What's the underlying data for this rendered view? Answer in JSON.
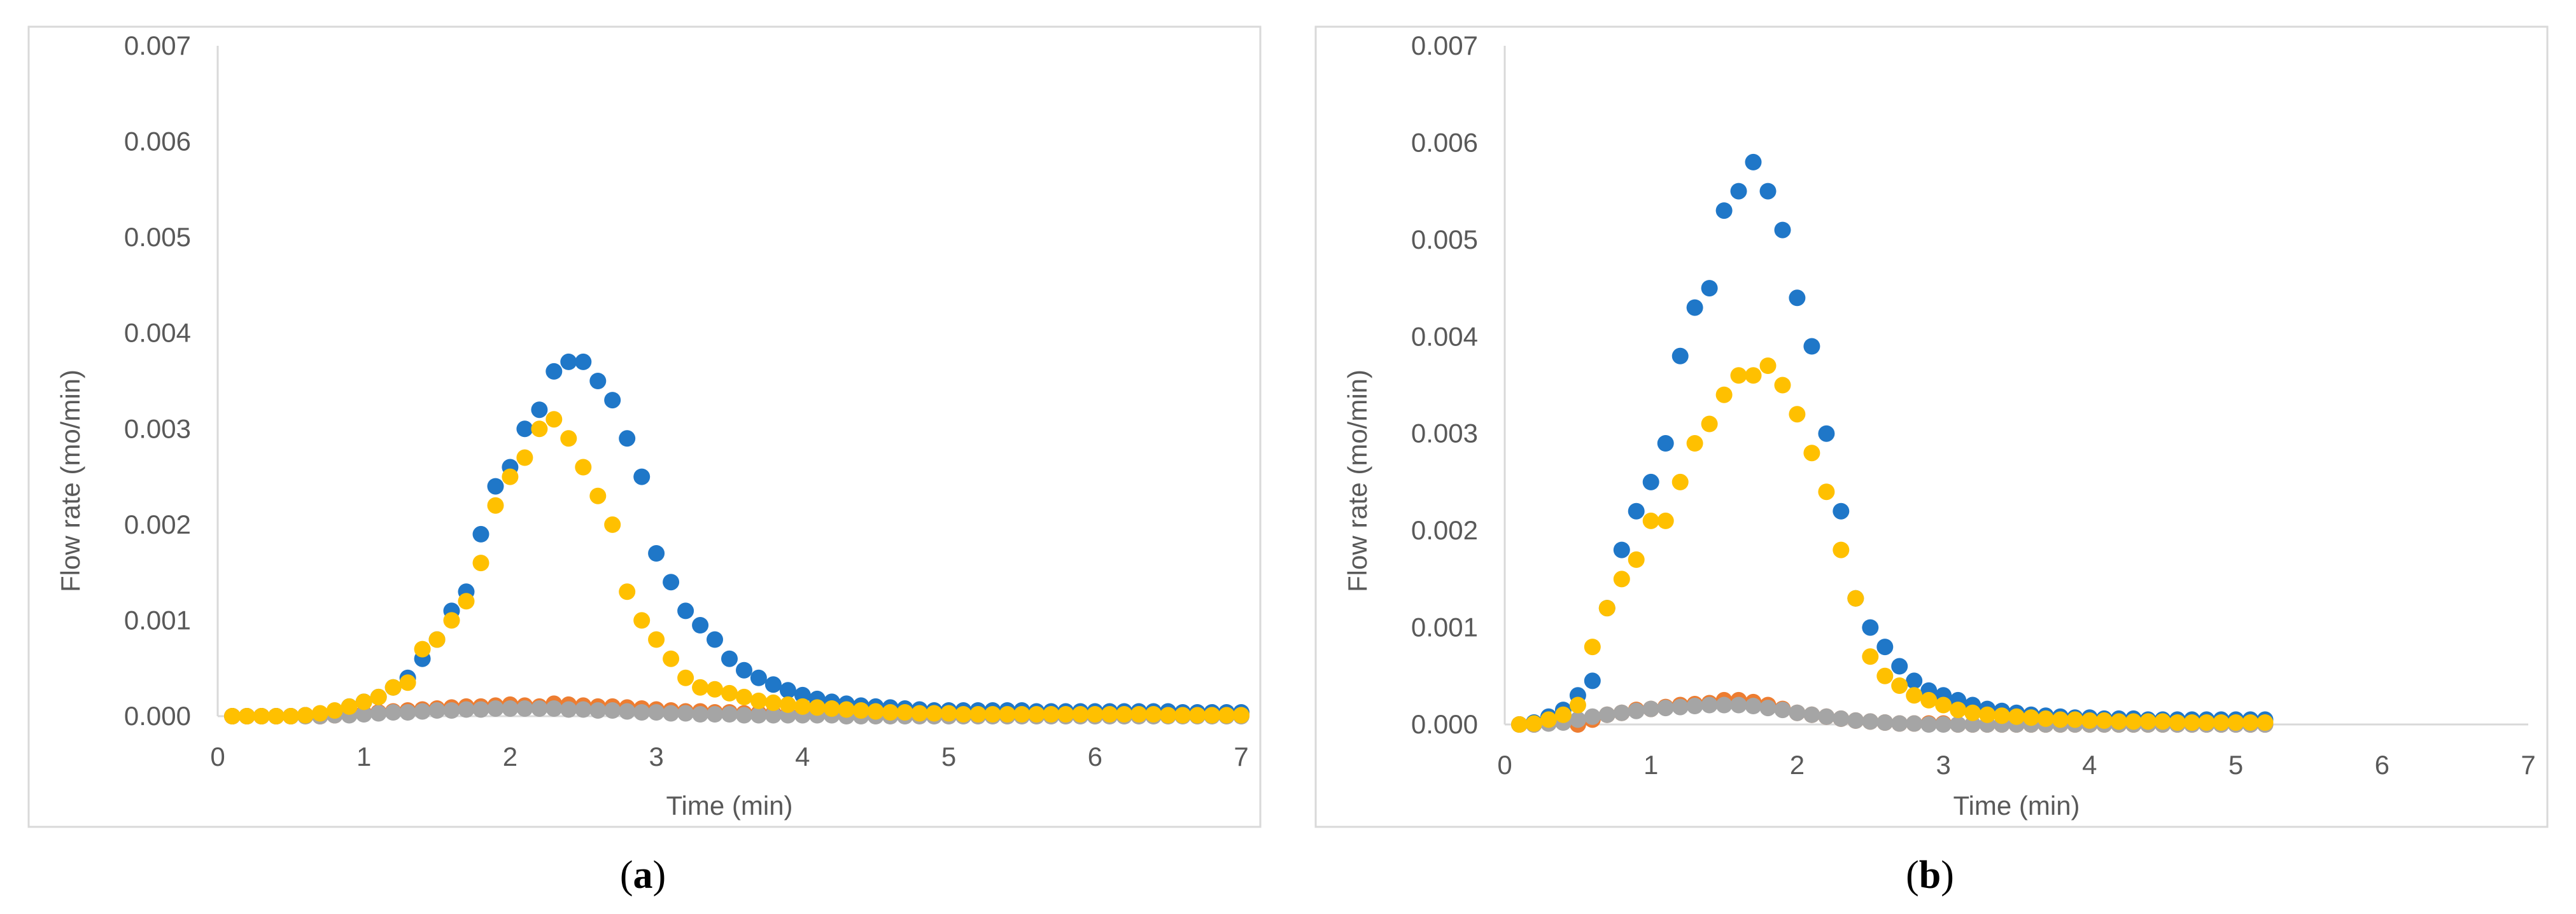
{
  "chart_data": [
    {
      "type": "scatter",
      "caption_letter": "a",
      "xlabel": "Time (min)",
      "ylabel": "Flow rate (mo/min)",
      "xlim": [
        0,
        7
      ],
      "ylim": [
        0,
        0.007
      ],
      "xticks": [
        "0",
        "1",
        "2",
        "3",
        "4",
        "5",
        "6",
        "7"
      ],
      "yticks": [
        "0.000",
        "0.001",
        "0.002",
        "0.003",
        "0.004",
        "0.005",
        "0.006",
        "0.007"
      ],
      "series": [
        {
          "name": "series-blue",
          "color": "#1F77C8",
          "x": [
            0.1,
            0.2,
            0.3,
            0.4,
            0.5,
            0.6,
            0.7,
            0.8,
            0.9,
            1.0,
            1.1,
            1.2,
            1.3,
            1.4,
            1.5,
            1.6,
            1.7,
            1.8,
            1.9,
            2.0,
            2.1,
            2.2,
            2.3,
            2.4,
            2.5,
            2.6,
            2.7,
            2.8,
            2.9,
            3.0,
            3.1,
            3.2,
            3.3,
            3.4,
            3.5,
            3.6,
            3.7,
            3.8,
            3.9,
            4.0,
            4.1,
            4.2,
            4.3,
            4.4,
            4.5,
            4.6,
            4.7,
            4.8,
            4.9,
            5.0,
            5.1,
            5.2,
            5.3,
            5.4,
            5.5,
            5.6,
            5.7,
            5.8,
            5.9,
            6.0,
            6.1,
            6.2,
            6.3,
            6.4,
            6.5,
            6.6,
            6.7,
            6.8,
            6.9,
            7.0
          ],
          "y": [
            0.0,
            0.0,
            0.0,
            0.0,
            0.0,
            1e-05,
            2e-05,
            5e-05,
            0.0001,
            0.00015,
            0.0002,
            0.0003,
            0.0004,
            0.0006,
            0.0008,
            0.0011,
            0.0013,
            0.0019,
            0.0024,
            0.0026,
            0.003,
            0.0032,
            0.0036,
            0.0037,
            0.0037,
            0.0035,
            0.0033,
            0.0029,
            0.0025,
            0.0017,
            0.0014,
            0.0011,
            0.00095,
            0.0008,
            0.0006,
            0.00048,
            0.0004,
            0.00033,
            0.00027,
            0.00022,
            0.00018,
            0.00015,
            0.00013,
            0.00011,
            0.0001,
            9e-05,
            8e-05,
            7e-05,
            6e-05,
            6e-05,
            6e-05,
            6e-05,
            6e-05,
            6e-05,
            6e-05,
            5e-05,
            5e-05,
            5e-05,
            5e-05,
            5e-05,
            5e-05,
            5e-05,
            5e-05,
            5e-05,
            5e-05,
            4e-05,
            4e-05,
            4e-05,
            4e-05,
            4e-05
          ]
        },
        {
          "name": "series-orange",
          "color": "#ED7D31",
          "x": [
            0.1,
            0.2,
            0.3,
            0.4,
            0.5,
            0.6,
            0.7,
            0.8,
            0.9,
            1.0,
            1.1,
            1.2,
            1.3,
            1.4,
            1.5,
            1.6,
            1.7,
            1.8,
            1.9,
            2.0,
            2.1,
            2.2,
            2.3,
            2.4,
            2.5,
            2.6,
            2.7,
            2.8,
            2.9,
            3.0,
            3.1,
            3.2,
            3.3,
            3.4,
            3.5,
            3.6,
            3.7,
            3.8,
            3.9,
            4.0,
            4.1,
            4.2,
            4.3,
            4.4,
            4.5,
            4.6,
            4.7,
            4.8,
            4.9,
            5.0,
            5.1,
            5.2,
            5.3,
            5.4,
            5.5,
            5.6,
            5.7,
            5.8,
            5.9,
            6.0,
            6.1,
            6.2,
            6.3,
            6.4,
            6.5,
            6.6,
            6.7,
            6.8,
            6.9,
            7.0
          ],
          "y": [
            0.0,
            0.0,
            0.0,
            0.0,
            0.0,
            1e-05,
            0.0,
            1e-05,
            2e-05,
            3e-05,
            4e-05,
            5e-05,
            6e-05,
            7e-05,
            8e-05,
            9e-05,
            0.0001,
            0.0001,
            0.00011,
            0.00012,
            0.00011,
            0.0001,
            0.00013,
            0.00012,
            0.00011,
            0.0001,
            0.0001,
            9e-05,
            8e-05,
            7e-05,
            6e-05,
            5e-05,
            5e-05,
            4e-05,
            4e-05,
            3e-05,
            3e-05,
            3e-05,
            2e-05,
            2e-05,
            2e-05,
            2e-05,
            2e-05,
            2e-05,
            2e-05,
            1e-05,
            1e-05,
            1e-05,
            1e-05,
            1e-05,
            1e-05,
            1e-05,
            1e-05,
            1e-05,
            1e-05,
            1e-05,
            1e-05,
            1e-05,
            1e-05,
            1e-05,
            1e-05,
            1e-05,
            1e-05,
            1e-05,
            1e-05,
            1e-05,
            1e-05,
            1e-05,
            1e-05,
            1e-05
          ]
        },
        {
          "name": "series-gray",
          "color": "#A5A5A5",
          "x": [
            0.1,
            0.2,
            0.3,
            0.4,
            0.5,
            0.6,
            0.7,
            0.8,
            0.9,
            1.0,
            1.1,
            1.2,
            1.3,
            1.4,
            1.5,
            1.6,
            1.7,
            1.8,
            1.9,
            2.0,
            2.1,
            2.2,
            2.3,
            2.4,
            2.5,
            2.6,
            2.7,
            2.8,
            2.9,
            3.0,
            3.1,
            3.2,
            3.3,
            3.4,
            3.5,
            3.6,
            3.7,
            3.8,
            3.9,
            4.0,
            4.1,
            4.2,
            4.3,
            4.4,
            4.5,
            4.6,
            4.7,
            4.8,
            4.9,
            5.0,
            5.1,
            5.2,
            5.3,
            5.4,
            5.5,
            5.6,
            5.7,
            5.8,
            5.9,
            6.0,
            6.1,
            6.2,
            6.3,
            6.4,
            6.5,
            6.6,
            6.7,
            6.8,
            6.9,
            7.0
          ],
          "y": [
            0.0,
            0.0,
            0.0,
            0.0,
            0.0,
            0.0,
            0.0,
            1e-05,
            1e-05,
            2e-05,
            3e-05,
            4e-05,
            4e-05,
            5e-05,
            6e-05,
            6e-05,
            7e-05,
            7e-05,
            8e-05,
            8e-05,
            8e-05,
            8e-05,
            8e-05,
            7e-05,
            7e-05,
            6e-05,
            6e-05,
            5e-05,
            4e-05,
            4e-05,
            3e-05,
            3e-05,
            2e-05,
            2e-05,
            2e-05,
            1e-05,
            1e-05,
            1e-05,
            1e-05,
            1e-05,
            1e-05,
            1e-05,
            0.0,
            0.0,
            0.0,
            0.0,
            0.0,
            0.0,
            0.0,
            0.0,
            0.0,
            0.0,
            0.0,
            0.0,
            0.0,
            0.0,
            0.0,
            0.0,
            0.0,
            0.0,
            0.0,
            0.0,
            0.0,
            0.0,
            0.0,
            0.0,
            0.0,
            0.0,
            0.0,
            0.0
          ]
        },
        {
          "name": "series-yellow",
          "color": "#FFC000",
          "x": [
            0.1,
            0.2,
            0.3,
            0.4,
            0.5,
            0.6,
            0.7,
            0.8,
            0.9,
            1.0,
            1.1,
            1.2,
            1.3,
            1.4,
            1.5,
            1.6,
            1.7,
            1.8,
            1.9,
            2.0,
            2.1,
            2.2,
            2.3,
            2.4,
            2.5,
            2.6,
            2.7,
            2.8,
            2.9,
            3.0,
            3.1,
            3.2,
            3.3,
            3.4,
            3.5,
            3.6,
            3.7,
            3.8,
            3.9,
            4.0,
            4.1,
            4.2,
            4.3,
            4.4,
            4.5,
            4.6,
            4.7,
            4.8,
            4.9,
            5.0,
            5.1,
            5.2,
            5.3,
            5.4,
            5.5,
            5.6,
            5.7,
            5.8,
            5.9,
            6.0,
            6.1,
            6.2,
            6.3,
            6.4,
            6.5,
            6.6,
            6.7,
            6.8,
            6.9,
            7.0
          ],
          "y": [
            0.0,
            0.0,
            0.0,
            0.0,
            0.0,
            1e-05,
            3e-05,
            6e-05,
            0.0001,
            0.00015,
            0.0002,
            0.0003,
            0.00035,
            0.0007,
            0.0008,
            0.001,
            0.0012,
            0.0016,
            0.0022,
            0.0025,
            0.0027,
            0.003,
            0.0031,
            0.0029,
            0.0026,
            0.0023,
            0.002,
            0.0013,
            0.001,
            0.0008,
            0.0006,
            0.0004,
            0.0003,
            0.00028,
            0.00024,
            0.0002,
            0.00016,
            0.00014,
            0.00012,
            0.0001,
            9e-05,
            8e-05,
            7e-05,
            6e-05,
            5e-05,
            4e-05,
            4e-05,
            3e-05,
            3e-05,
            3e-05,
            2e-05,
            2e-05,
            2e-05,
            2e-05,
            2e-05,
            2e-05,
            2e-05,
            2e-05,
            2e-05,
            2e-05,
            2e-05,
            2e-05,
            2e-05,
            2e-05,
            1e-05,
            1e-05,
            1e-05,
            1e-05,
            1e-05,
            1e-05
          ]
        }
      ]
    },
    {
      "type": "scatter",
      "caption_letter": "b",
      "xlabel": "Time (min)",
      "ylabel": "Flow rate (mo/min)",
      "xlim": [
        0,
        7
      ],
      "ylim": [
        0,
        0.007
      ],
      "xticks": [
        "0",
        "1",
        "2",
        "3",
        "4",
        "5",
        "6",
        "7"
      ],
      "yticks": [
        "0.000",
        "0.001",
        "0.002",
        "0.003",
        "0.004",
        "0.005",
        "0.006",
        "0.007"
      ],
      "series": [
        {
          "name": "series-blue",
          "color": "#1F77C8",
          "x": [
            0.1,
            0.2,
            0.3,
            0.4,
            0.5,
            0.6,
            0.7,
            0.8,
            0.9,
            1.0,
            1.1,
            1.2,
            1.3,
            1.4,
            1.5,
            1.6,
            1.7,
            1.8,
            1.9,
            2.0,
            2.1,
            2.2,
            2.3,
            2.4,
            2.5,
            2.6,
            2.7,
            2.8,
            2.9,
            3.0,
            3.1,
            3.2,
            3.3,
            3.4,
            3.5,
            3.6,
            3.7,
            3.8,
            3.9,
            4.0,
            4.1,
            4.2,
            4.3,
            4.4,
            4.5,
            4.6,
            4.7,
            4.8,
            4.9,
            5.0,
            5.1,
            5.2
          ],
          "y": [
            0.0,
            2e-05,
            8e-05,
            0.00015,
            0.0003,
            0.00045,
            0.0012,
            0.0018,
            0.0022,
            0.0025,
            0.0029,
            0.0038,
            0.0043,
            0.0045,
            0.0053,
            0.0055,
            0.0058,
            0.0055,
            0.0051,
            0.0044,
            0.0039,
            0.003,
            0.0022,
            0.0013,
            0.001,
            0.0008,
            0.0006,
            0.00045,
            0.00035,
            0.0003,
            0.00025,
            0.0002,
            0.00016,
            0.00014,
            0.00012,
            0.0001,
            9e-05,
            8e-05,
            7e-05,
            7e-05,
            6e-05,
            6e-05,
            6e-05,
            5e-05,
            5e-05,
            5e-05,
            5e-05,
            5e-05,
            5e-05,
            5e-05,
            5e-05,
            5e-05
          ]
        },
        {
          "name": "series-orange",
          "color": "#ED7D31",
          "x": [
            0.1,
            0.2,
            0.3,
            0.4,
            0.5,
            0.6,
            0.7,
            0.8,
            0.9,
            1.0,
            1.1,
            1.2,
            1.3,
            1.4,
            1.5,
            1.6,
            1.7,
            1.8,
            1.9,
            2.0,
            2.1,
            2.2,
            2.3,
            2.4,
            2.5,
            2.6,
            2.7,
            2.8,
            2.9,
            3.0,
            3.1,
            3.2,
            3.3,
            3.4,
            3.5,
            3.6,
            3.7,
            3.8,
            3.9,
            4.0,
            4.1,
            4.2,
            4.3,
            4.4,
            4.5,
            4.6,
            4.7,
            4.8,
            4.9,
            5.0,
            5.1,
            5.2
          ],
          "y": [
            0.0,
            0.0,
            2e-05,
            4e-05,
            0.0,
            5e-05,
            0.0001,
            0.00012,
            0.00015,
            0.00016,
            0.00018,
            0.0002,
            0.00021,
            0.00022,
            0.00025,
            0.00025,
            0.00023,
            0.0002,
            0.00016,
            0.00012,
            0.0001,
            8e-05,
            6e-05,
            4e-05,
            3e-05,
            2e-05,
            1e-05,
            1e-05,
            1e-05,
            1e-05,
            0.0,
            0.0,
            0.0,
            0.0,
            0.0,
            0.0,
            0.0,
            0.0,
            0.0,
            0.0,
            0.0,
            0.0,
            0.0,
            0.0,
            0.0,
            0.0,
            0.0,
            0.0,
            0.0,
            0.0,
            0.0,
            0.0
          ]
        },
        {
          "name": "series-gray",
          "color": "#A5A5A5",
          "x": [
            0.1,
            0.2,
            0.3,
            0.4,
            0.5,
            0.6,
            0.7,
            0.8,
            0.9,
            1.0,
            1.1,
            1.2,
            1.3,
            1.4,
            1.5,
            1.6,
            1.7,
            1.8,
            1.9,
            2.0,
            2.1,
            2.2,
            2.3,
            2.4,
            2.5,
            2.6,
            2.7,
            2.8,
            2.9,
            3.0,
            3.1,
            3.2,
            3.3,
            3.4,
            3.5,
            3.6,
            3.7,
            3.8,
            3.9,
            4.0,
            4.1,
            4.2,
            4.3,
            4.4,
            4.5,
            4.6,
            4.7,
            4.8,
            4.9,
            5.0,
            5.1,
            5.2
          ],
          "y": [
            0.0,
            0.0,
            1e-05,
            2e-05,
            5e-05,
            8e-05,
            0.0001,
            0.00012,
            0.00014,
            0.00016,
            0.00017,
            0.00018,
            0.00019,
            0.0002,
            0.0002,
            0.0002,
            0.00019,
            0.00017,
            0.00015,
            0.00012,
            0.0001,
            8e-05,
            6e-05,
            4e-05,
            3e-05,
            2e-05,
            1e-05,
            1e-05,
            0.0,
            0.0,
            0.0,
            0.0,
            0.0,
            0.0,
            0.0,
            0.0,
            0.0,
            0.0,
            0.0,
            0.0,
            0.0,
            0.0,
            0.0,
            0.0,
            0.0,
            0.0,
            0.0,
            0.0,
            0.0,
            0.0,
            0.0,
            0.0
          ]
        },
        {
          "name": "series-yellow",
          "color": "#FFC000",
          "x": [
            0.1,
            0.2,
            0.3,
            0.4,
            0.5,
            0.6,
            0.7,
            0.8,
            0.9,
            1.0,
            1.1,
            1.2,
            1.3,
            1.4,
            1.5,
            1.6,
            1.7,
            1.8,
            1.9,
            2.0,
            2.1,
            2.2,
            2.3,
            2.4,
            2.5,
            2.6,
            2.7,
            2.8,
            2.9,
            3.0,
            3.1,
            3.2,
            3.3,
            3.4,
            3.5,
            3.6,
            3.7,
            3.8,
            3.9,
            4.0,
            4.1,
            4.2,
            4.3,
            4.4,
            4.5,
            4.6,
            4.7,
            4.8,
            4.9,
            5.0,
            5.1,
            5.2
          ],
          "y": [
            0.0,
            1e-05,
            5e-05,
            0.0001,
            0.0002,
            0.0008,
            0.0012,
            0.0015,
            0.0017,
            0.0021,
            0.0021,
            0.0025,
            0.0029,
            0.0031,
            0.0034,
            0.0036,
            0.0036,
            0.0037,
            0.0035,
            0.0032,
            0.0028,
            0.0024,
            0.0018,
            0.0013,
            0.0007,
            0.0005,
            0.0004,
            0.0003,
            0.00025,
            0.0002,
            0.00015,
            0.00012,
            0.0001,
            9e-05,
            8e-05,
            7e-05,
            6e-05,
            5e-05,
            5e-05,
            4e-05,
            4e-05,
            3e-05,
            3e-05,
            3e-05,
            3e-05,
            2e-05,
            2e-05,
            2e-05,
            2e-05,
            2e-05,
            2e-05,
            2e-05
          ]
        }
      ]
    }
  ]
}
